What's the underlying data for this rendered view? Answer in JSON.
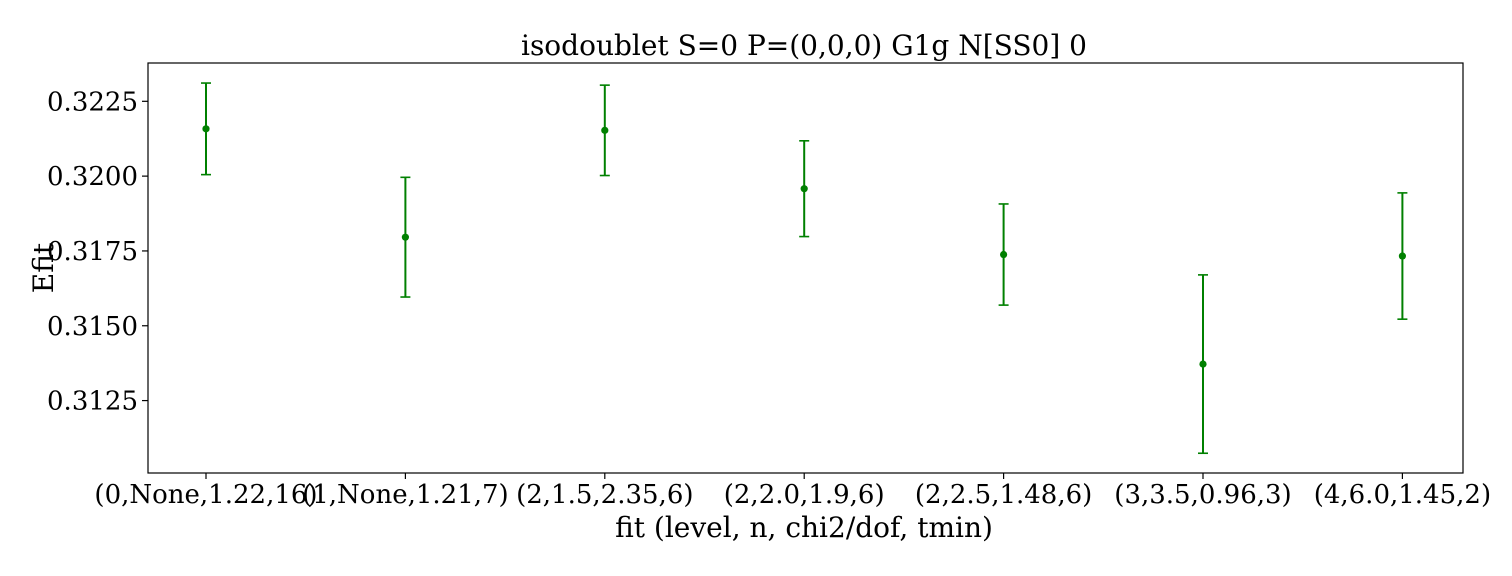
{
  "chart_data": {
    "type": "scatter",
    "title": "isodoublet S=0 P=(0,0,0) G1g N[SS0] 0",
    "xlabel": "fit (level, n, chi2/dof, tmin)",
    "ylabel": "Efit",
    "categories": [
      "(0,None,1.22,16)",
      "(1,None,1.21,7)",
      "(2,1.5,2.35,6)",
      "(2,2.0,1.9,6)",
      "(2,2.5,1.48,6)",
      "(3,3.5,0.96,3)",
      "(4,6.0,1.45,2)"
    ],
    "series": [
      {
        "values": [
          0.32158,
          0.31796,
          0.32153,
          0.31958,
          0.31738,
          0.31372,
          0.31733
        ],
        "errors": [
          0.00153,
          0.002,
          0.00151,
          0.0016,
          0.00169,
          0.00298,
          0.00211
        ]
      }
    ],
    "yticks": [
      "0.3125",
      "0.3150",
      "0.3175",
      "0.3200",
      "0.3225"
    ],
    "ylim": [
      0.31008,
      0.32378
    ],
    "grid": false,
    "colors": {
      "marker": "#008000",
      "axis": "#000000"
    }
  }
}
